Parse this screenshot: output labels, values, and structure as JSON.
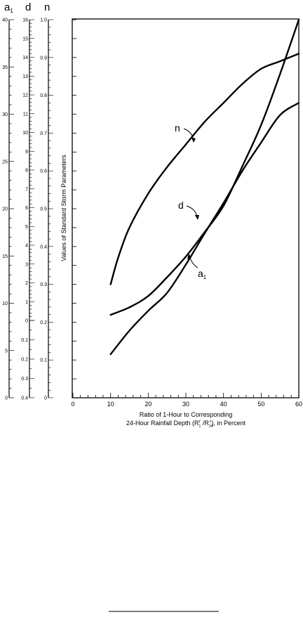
{
  "chart_data": {
    "type": "line",
    "xlabel_line1": "Ratio of 1-Hour to Corresponding",
    "xlabel_line2": "24-Hour Rainfall Depth (R",
    "xlabel_sub1": "1",
    "xlabel_mid": " /R",
    "xlabel_sub2": "24",
    "xlabel_end": "), in Percent",
    "xlabel_sup": "T",
    "ylabel": "Values of Standard Storm Parameters",
    "xlim": [
      0,
      60
    ],
    "x_ticks": [
      0,
      10,
      20,
      30,
      40,
      50,
      60
    ],
    "grid": false,
    "series": [
      {
        "name": "n",
        "scale": "n",
        "x": [
          10,
          12,
          15,
          20,
          25,
          30,
          35,
          40,
          45,
          50,
          55,
          60
        ],
        "values": [
          0.3,
          0.37,
          0.45,
          0.54,
          0.61,
          0.67,
          0.73,
          0.78,
          0.83,
          0.87,
          0.89,
          0.91
        ]
      },
      {
        "name": "d",
        "scale": "d",
        "x": [
          10,
          15,
          20,
          25,
          30,
          35,
          40,
          45,
          50,
          55,
          60
        ],
        "values": [
          0.3,
          0.7,
          1.3,
          2.3,
          3.4,
          4.7,
          6.1,
          8.2,
          10.4,
          13.1,
          16.0
        ]
      },
      {
        "name": "a",
        "name_sub": "1",
        "scale": "a1",
        "x": [
          10,
          15,
          20,
          25,
          30,
          35,
          40,
          45,
          50,
          55,
          60
        ],
        "values": [
          4.6,
          7.1,
          9.2,
          11.1,
          14.1,
          17.4,
          20.6,
          24.0,
          27.0,
          29.9,
          31.2
        ]
      }
    ],
    "scales": {
      "a1": {
        "label": "a",
        "label_sub": "1",
        "min": 0,
        "max": 40,
        "labels": [
          "0",
          "5",
          "10",
          "15",
          "20",
          "25",
          "30",
          "35",
          "40"
        ]
      },
      "d": {
        "label": "d",
        "min": -0.4,
        "max": 16,
        "labels": [
          "0.4",
          "0.3",
          "0.2",
          "0.1",
          "0",
          "1",
          "2",
          "3",
          "4",
          "5",
          "6",
          "7",
          "8",
          "9",
          "10",
          "11",
          "12",
          "13",
          "14",
          "15",
          "16"
        ]
      },
      "n": {
        "label": "n",
        "min": 0,
        "max": 1.0,
        "labels": [
          "0",
          "0.1",
          "0.2",
          "0.3",
          "0.4",
          "0.5",
          "0.6",
          "0.7",
          "0.8",
          "0.9",
          "1.0"
        ]
      }
    }
  }
}
